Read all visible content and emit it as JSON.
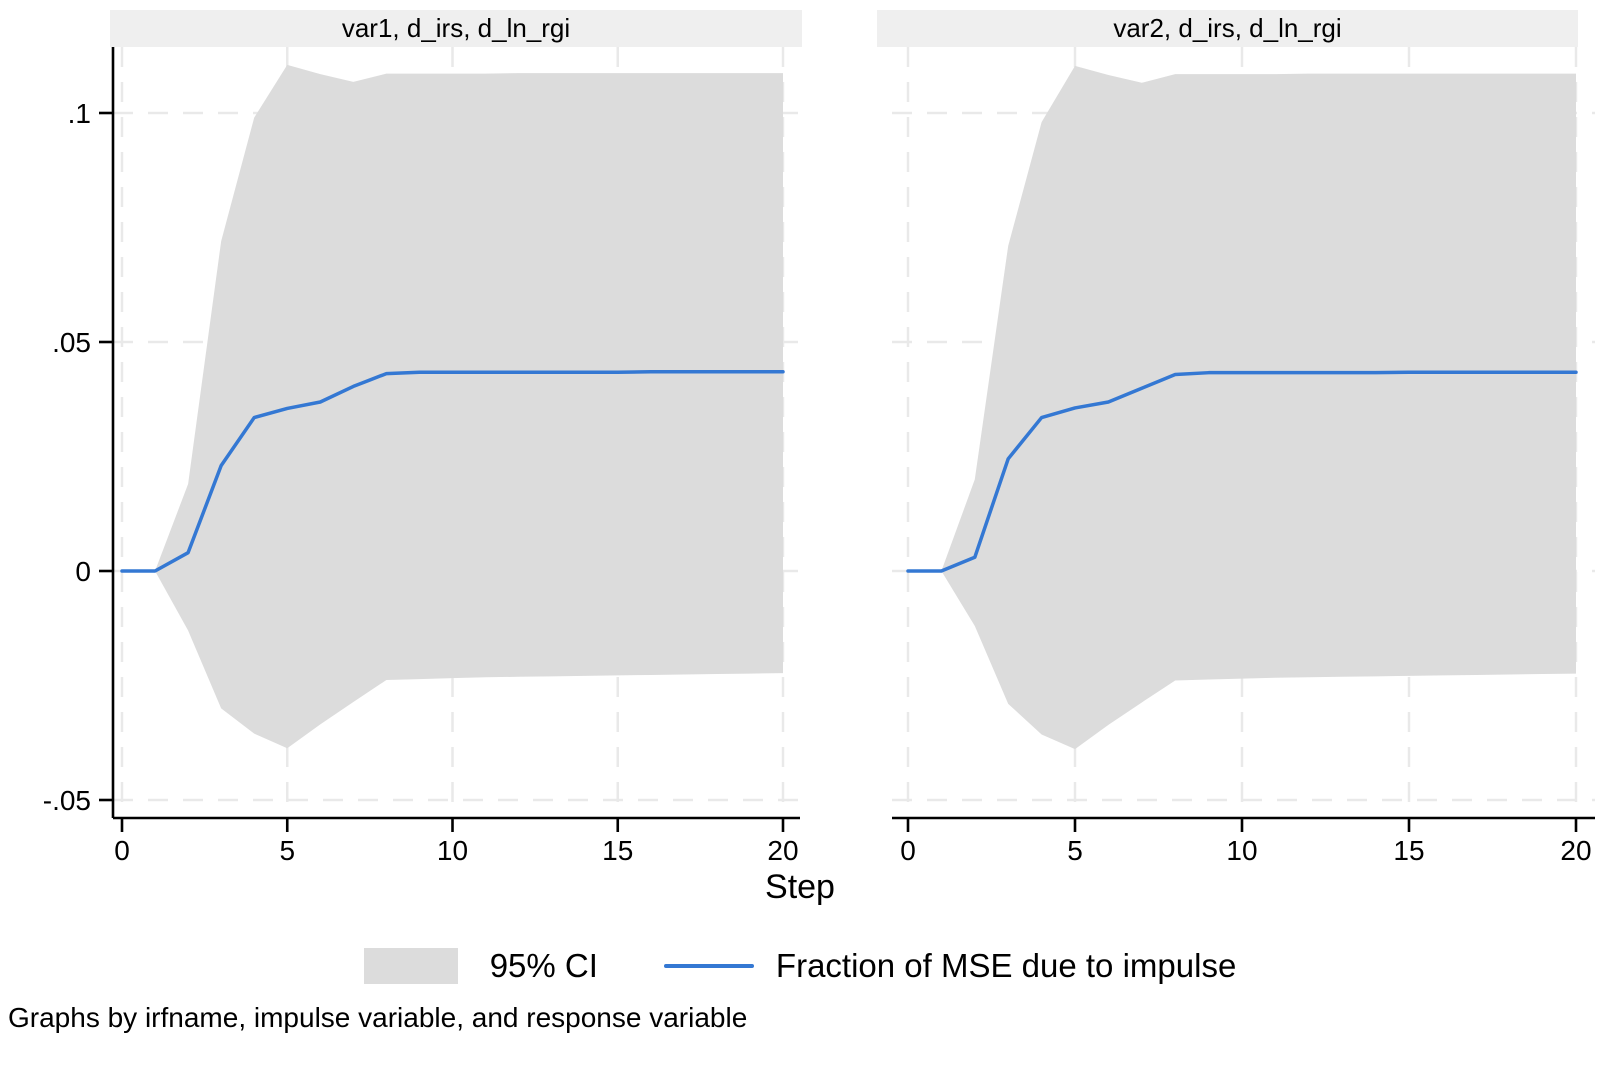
{
  "figure": {
    "panel_titles": [
      "var1, d_irs, d_ln_rgi",
      "var2, d_irs, d_ln_rgi"
    ],
    "xlabel": "Step",
    "legend": {
      "ci_label": "95% CI",
      "line_label": "Fraction of MSE due to impulse"
    },
    "caption": "Graphs by irfname, impulse variable, and response variable",
    "colors": {
      "ci_band": "#dcdcdc",
      "line": "#3478d3",
      "panel_header_bg": "#efefef",
      "grid": "#e9e9e9",
      "axis": "#000000"
    }
  },
  "chart_data": [
    {
      "type": "area",
      "title": "var1, d_irs, d_ln_rgi",
      "xlabel": "Step",
      "xlim": [
        0,
        20
      ],
      "ylim": [
        -0.054,
        0.115
      ],
      "grid": true,
      "legend_position": "bottom",
      "x": [
        0,
        1,
        2,
        3,
        4,
        5,
        6,
        7,
        8,
        9,
        10,
        11,
        12,
        13,
        14,
        15,
        16,
        17,
        18,
        19,
        20
      ],
      "x_ticks": [
        {
          "label": "0",
          "value": 0
        },
        {
          "label": "5",
          "value": 5
        },
        {
          "label": "10",
          "value": 10
        },
        {
          "label": "15",
          "value": 15
        },
        {
          "label": "20",
          "value": 20
        }
      ],
      "y_ticks": [
        {
          "label": ".1",
          "value": 0.1
        },
        {
          "label": ".05",
          "value": 0.05
        },
        {
          "label": "0",
          "value": 0
        },
        {
          "label": "-.05",
          "value": -0.05
        }
      ],
      "series": [
        {
          "name": "95% CI upper",
          "values": [
            0,
            0,
            0.019,
            0.072,
            0.099,
            0.1105,
            0.1085,
            0.1068,
            0.1086,
            0.1086,
            0.1086,
            0.1086,
            0.1087,
            0.1087,
            0.1087,
            0.1087,
            0.1087,
            0.1087,
            0.1087,
            0.1087,
            0.1087
          ]
        },
        {
          "name": "95% CI lower",
          "values": [
            0,
            0,
            -0.013,
            -0.03,
            -0.0355,
            -0.0387,
            -0.0335,
            -0.0286,
            -0.0238,
            -0.0236,
            -0.0234,
            -0.0232,
            -0.0231,
            -0.023,
            -0.0229,
            -0.0228,
            -0.0227,
            -0.0226,
            -0.0225,
            -0.0224,
            -0.0223
          ]
        },
        {
          "name": "Fraction of MSE due to impulse",
          "values": [
            0,
            0,
            0.004,
            0.023,
            0.0335,
            0.0355,
            0.0369,
            0.0403,
            0.0431,
            0.0434,
            0.0434,
            0.0434,
            0.0434,
            0.0434,
            0.0434,
            0.0434,
            0.0435,
            0.0435,
            0.0435,
            0.0435,
            0.0435
          ]
        }
      ]
    },
    {
      "type": "area",
      "title": "var2, d_irs, d_ln_rgi",
      "xlabel": "Step",
      "xlim": [
        0,
        20
      ],
      "ylim": [
        -0.054,
        0.115
      ],
      "grid": true,
      "legend_position": "bottom",
      "x": [
        0,
        1,
        2,
        3,
        4,
        5,
        6,
        7,
        8,
        9,
        10,
        11,
        12,
        13,
        14,
        15,
        16,
        17,
        18,
        19,
        20
      ],
      "x_ticks": [
        {
          "label": "0",
          "value": 0
        },
        {
          "label": "5",
          "value": 5
        },
        {
          "label": "10",
          "value": 10
        },
        {
          "label": "15",
          "value": 15
        },
        {
          "label": "20",
          "value": 20
        }
      ],
      "y_ticks": [
        {
          "label": ".1",
          "value": 0.1
        },
        {
          "label": ".05",
          "value": 0.05
        },
        {
          "label": "0",
          "value": 0
        },
        {
          "label": "-.05",
          "value": -0.05
        }
      ],
      "series": [
        {
          "name": "95% CI upper",
          "values": [
            0,
            0,
            0.02,
            0.071,
            0.098,
            0.1103,
            0.1083,
            0.1066,
            0.1085,
            0.1085,
            0.1085,
            0.1085,
            0.1086,
            0.1086,
            0.1086,
            0.1086,
            0.1086,
            0.1086,
            0.1086,
            0.1086,
            0.1086
          ]
        },
        {
          "name": "95% CI lower",
          "values": [
            0,
            0,
            -0.012,
            -0.029,
            -0.0357,
            -0.0389,
            -0.0336,
            -0.0287,
            -0.0239,
            -0.0237,
            -0.0235,
            -0.0233,
            -0.0232,
            -0.0231,
            -0.023,
            -0.0229,
            -0.0228,
            -0.0227,
            -0.0226,
            -0.0225,
            -0.0224
          ]
        },
        {
          "name": "Fraction of MSE due to impulse",
          "values": [
            0,
            0,
            0.003,
            0.0245,
            0.0335,
            0.0356,
            0.0369,
            0.0399,
            0.0429,
            0.0433,
            0.0433,
            0.0433,
            0.0433,
            0.0433,
            0.0433,
            0.0434,
            0.0434,
            0.0434,
            0.0434,
            0.0434,
            0.0434
          ]
        }
      ]
    }
  ]
}
